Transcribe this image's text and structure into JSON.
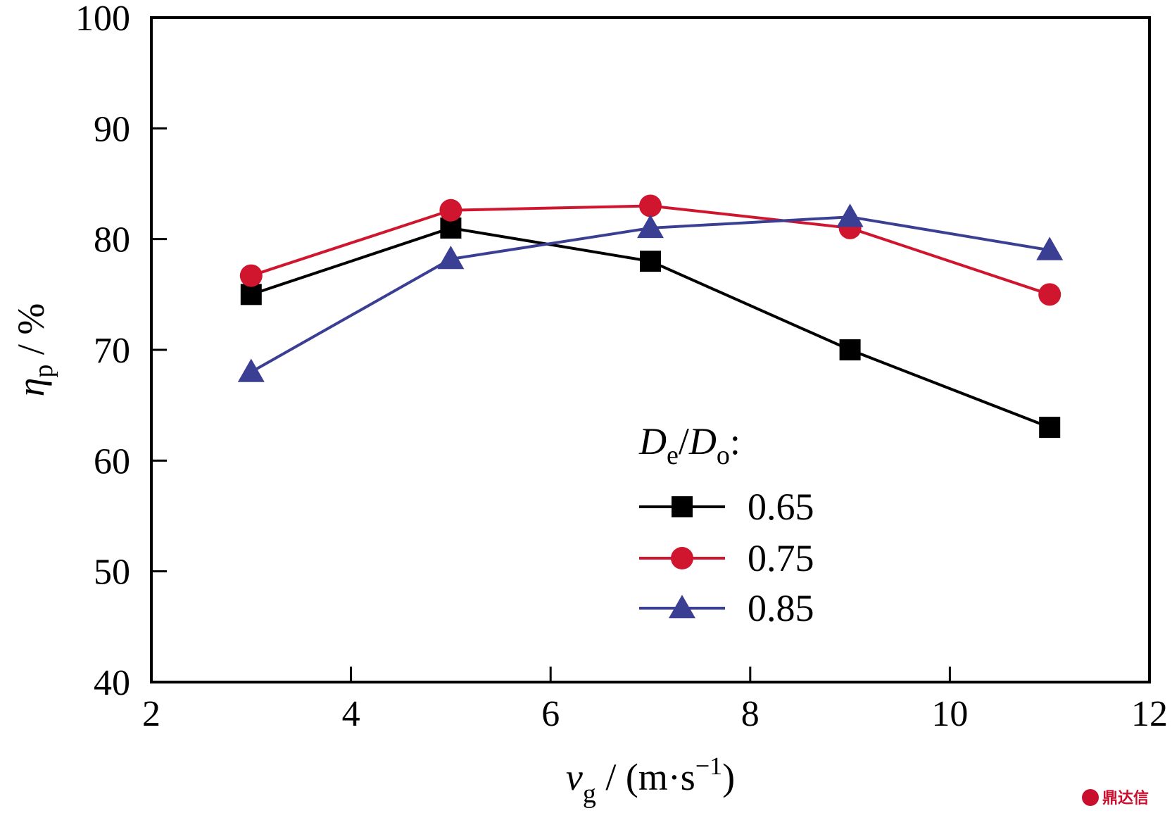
{
  "chart_data": {
    "type": "line",
    "x": [
      3,
      5,
      7,
      9,
      11
    ],
    "xlim": [
      2,
      12
    ],
    "ylim": [
      40,
      100
    ],
    "xticks": [
      2,
      4,
      6,
      8,
      10,
      12
    ],
    "yticks": [
      40,
      50,
      60,
      70,
      80,
      90,
      100
    ],
    "xlabel": {
      "main": "v",
      "sub": "g",
      "rest": " / (m·s",
      "sup": "−1",
      "close": ")"
    },
    "ylabel": {
      "main": "η",
      "sub": "p",
      "rest": " / %"
    },
    "legend_title": {
      "d1": "D",
      "s1": "e",
      "slash": "/",
      "d2": "D",
      "s2": "o",
      "colon": ":"
    },
    "legend_position": "center-right",
    "grid": false,
    "series": [
      {
        "name": "0.65",
        "color": "#000000",
        "marker": "square",
        "values": [
          75,
          81,
          78,
          70,
          63
        ]
      },
      {
        "name": "0.75",
        "color": "#d0152e",
        "marker": "circle",
        "values": [
          76.7,
          82.6,
          83,
          81,
          75
        ]
      },
      {
        "name": "0.85",
        "color": "#3b3f94",
        "marker": "triangle",
        "values": [
          68,
          78.2,
          81,
          82,
          79
        ]
      }
    ]
  },
  "watermark": {
    "text": "鼎达信"
  }
}
